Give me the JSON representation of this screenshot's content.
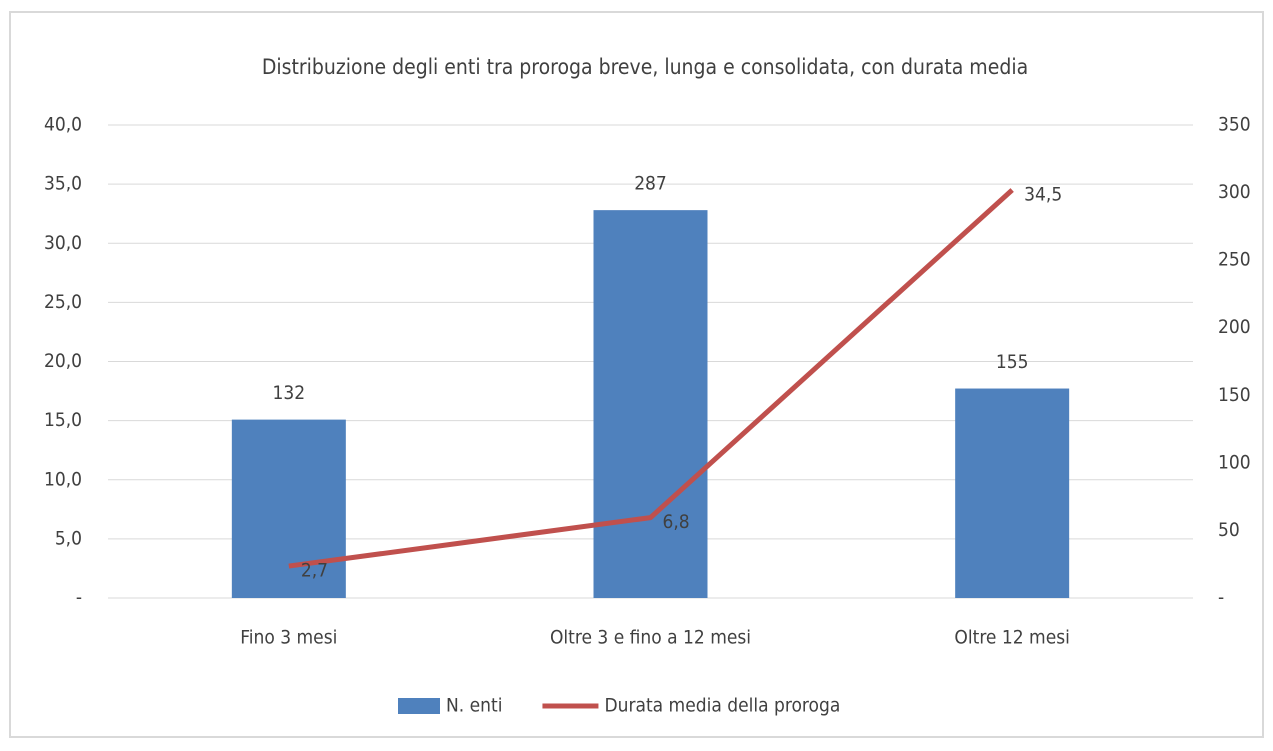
{
  "chart_data": {
    "type": "bar-line",
    "title": "Distribuzione degli enti tra proroga breve, lunga e consolidata, con durata media",
    "categories": [
      "Fino 3 mesi",
      "Oltre 3 e fino a 12 mesi",
      "Oltre 12 mesi"
    ],
    "series": [
      {
        "name": "N. enti",
        "type": "bar",
        "axis": "y2",
        "color": "#4f81bd",
        "values": [
          132,
          287,
          155
        ]
      },
      {
        "name": "Durata media della proroga",
        "type": "line",
        "axis": "y",
        "color": "#c0504d",
        "values": [
          2.7,
          6.8,
          34.5
        ],
        "value_labels": [
          "2,7",
          "6,8",
          "34,5"
        ]
      }
    ],
    "ylim": [
      0,
      40
    ],
    "yticks": [
      {
        "value": 0,
        "label": "-"
      },
      {
        "value": 5,
        "label": "5,0"
      },
      {
        "value": 10,
        "label": "10,0"
      },
      {
        "value": 15,
        "label": "15,0"
      },
      {
        "value": 20,
        "label": "20,0"
      },
      {
        "value": 25,
        "label": "25,0"
      },
      {
        "value": 30,
        "label": "30,0"
      },
      {
        "value": 35,
        "label": "35,0"
      },
      {
        "value": 40,
        "label": "40,0"
      }
    ],
    "y2lim": [
      0,
      350
    ],
    "y2ticks": [
      {
        "value": 0,
        "label": "-"
      },
      50,
      100,
      150,
      200,
      250,
      300,
      350
    ],
    "grid": true,
    "legend": "bottom"
  }
}
